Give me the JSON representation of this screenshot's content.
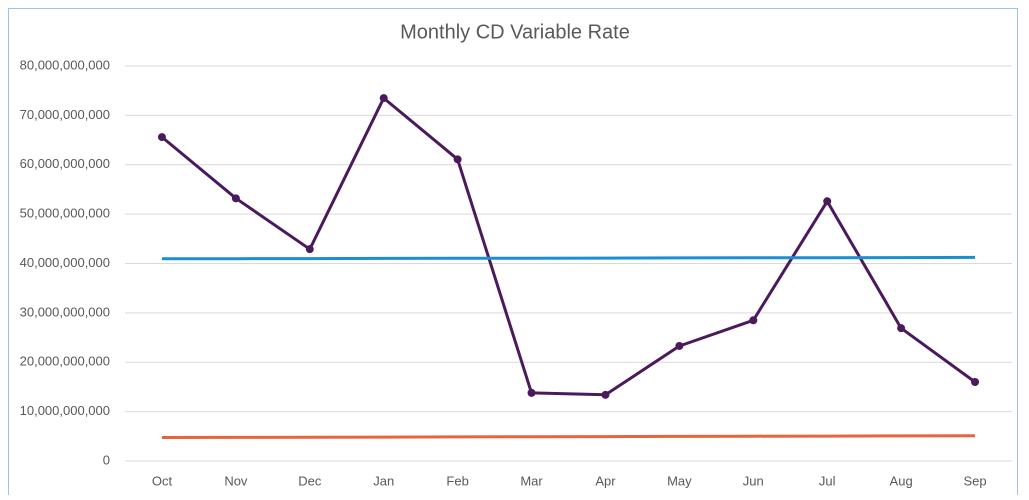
{
  "chart_data": {
    "type": "line",
    "title": "Monthly CD Variable Rate",
    "categories": [
      "Oct",
      "Nov",
      "Dec",
      "Jan",
      "Feb",
      "Mar",
      "Apr",
      "May",
      "Jun",
      "Jul",
      "Aug",
      "Sep"
    ],
    "series": [
      {
        "color": "#4b1a5c",
        "markers": true,
        "values": [
          65600000000,
          53200000000,
          42900000000,
          73500000000,
          61100000000,
          13800000000,
          13400000000,
          23300000000,
          28500000000,
          52600000000,
          26900000000,
          16000000000
        ]
      },
      {
        "color": "#1a8fd0",
        "markers": false,
        "values": [
          40950000000,
          40980000000,
          41000000000,
          41030000000,
          41050000000,
          41080000000,
          41100000000,
          41130000000,
          41150000000,
          41180000000,
          41200000000,
          41230000000
        ]
      },
      {
        "color": "#e8643c",
        "markers": false,
        "values": [
          4750000000,
          4780000000,
          4820000000,
          4850000000,
          4880000000,
          4920000000,
          4950000000,
          4980000000,
          5020000000,
          5050000000,
          5080000000,
          5120000000
        ]
      }
    ],
    "ylim": [
      0,
      80000000000
    ],
    "yticks": [
      0,
      {
        "value": 10000000000,
        "label": "10,000,000,000"
      },
      {
        "value": 20000000000,
        "label": "20,000,000,000"
      },
      {
        "value": 30000000000,
        "label": "30,000,000,000"
      },
      {
        "value": 40000000000,
        "label": "40,000,000,000"
      },
      {
        "value": 50000000000,
        "label": "50,000,000,000"
      },
      {
        "value": 60000000000,
        "label": "60,000,000,000"
      },
      {
        "value": 70000000000,
        "label": "70,000,000,000"
      },
      {
        "value": 80000000000,
        "label": "80,000,000,000"
      }
    ],
    "grid": true
  }
}
